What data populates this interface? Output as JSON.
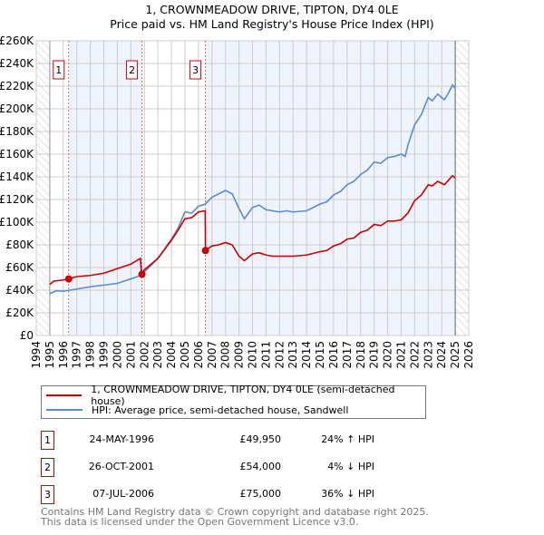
{
  "title": "1, CROWNMEADOW DRIVE, TIPTON, DY4 0LE",
  "subtitle": "Price paid vs. HM Land Registry's House Price Index (HPI)",
  "colors": {
    "property": "#cc0000",
    "hpi": "#5b8bd0",
    "shade": "#eef3fc"
  },
  "chart_data": {
    "type": "line",
    "title": "1, CROWNMEADOW DRIVE, TIPTON, DY4 0LE",
    "xlim": [
      1994,
      2026
    ],
    "ylim": [
      0,
      260000
    ],
    "x_ticks": [
      "1994",
      "1995",
      "1996",
      "1997",
      "1998",
      "1999",
      "2000",
      "2001",
      "2002",
      "2003",
      "2004",
      "2005",
      "2006",
      "2007",
      "2008",
      "2009",
      "2010",
      "2011",
      "2012",
      "2013",
      "2014",
      "2015",
      "2016",
      "2017",
      "2018",
      "2019",
      "2020",
      "2021",
      "2022",
      "2023",
      "2024",
      "2025",
      "2026"
    ],
    "y_ticks": [
      "£0",
      "£20K",
      "£40K",
      "£60K",
      "£80K",
      "£100K",
      "£120K",
      "£140K",
      "£160K",
      "£180K",
      "£200K",
      "£220K",
      "£240K",
      "£260K"
    ],
    "series": [
      {
        "name": "1, CROWNMEADOW DRIVE, TIPTON, DY4 0LE (semi-detached house)",
        "color": "#cc0000",
        "points": [
          [
            1995,
            45
          ],
          [
            1995.3,
            48
          ],
          [
            1996,
            49
          ],
          [
            1996.4,
            50
          ],
          [
            1997,
            52
          ],
          [
            1998,
            53
          ],
          [
            1999,
            55
          ],
          [
            2000,
            59
          ],
          [
            2001,
            63
          ],
          [
            2001.7,
            68
          ],
          [
            2001.8,
            54
          ],
          [
            2002,
            58
          ],
          [
            2003,
            68
          ],
          [
            2004,
            84
          ],
          [
            2004.5,
            93
          ],
          [
            2005,
            103
          ],
          [
            2005.5,
            104
          ],
          [
            2006,
            109
          ],
          [
            2006.5,
            110
          ],
          [
            2006.52,
            75
          ],
          [
            2007,
            79
          ],
          [
            2007.5,
            80
          ],
          [
            2008,
            82
          ],
          [
            2008.5,
            80
          ],
          [
            2009,
            70
          ],
          [
            2009.4,
            66
          ],
          [
            2010,
            72
          ],
          [
            2010.5,
            73
          ],
          [
            2011,
            71
          ],
          [
            2011.5,
            70
          ],
          [
            2012,
            70
          ],
          [
            2013,
            70
          ],
          [
            2014,
            71
          ],
          [
            2015,
            74
          ],
          [
            2015.5,
            75
          ],
          [
            2016,
            79
          ],
          [
            2016.5,
            81
          ],
          [
            2017,
            85
          ],
          [
            2017.5,
            86
          ],
          [
            2018,
            91
          ],
          [
            2018.5,
            93
          ],
          [
            2019,
            98
          ],
          [
            2019.5,
            97
          ],
          [
            2020,
            101
          ],
          [
            2020.5,
            101
          ],
          [
            2021,
            102
          ],
          [
            2021.5,
            108
          ],
          [
            2022,
            119
          ],
          [
            2022.5,
            124
          ],
          [
            2023,
            133
          ],
          [
            2023.3,
            132
          ],
          [
            2023.7,
            136
          ],
          [
            2024.2,
            133
          ],
          [
            2024.8,
            141
          ],
          [
            2025,
            139
          ]
        ]
      },
      {
        "name": "HPI: Average price, semi-detached house, Sandwell",
        "color": "#5b8bd0",
        "points": [
          [
            1995,
            37
          ],
          [
            1995.5,
            39.5
          ],
          [
            1996,
            39
          ],
          [
            1997,
            41
          ],
          [
            1998,
            43
          ],
          [
            1999,
            44.5
          ],
          [
            2000,
            46
          ],
          [
            2001,
            50
          ],
          [
            2001.5,
            52
          ],
          [
            2002,
            56
          ],
          [
            2003,
            68
          ],
          [
            2004,
            85
          ],
          [
            2004.5,
            95
          ],
          [
            2005,
            109
          ],
          [
            2005.5,
            108
          ],
          [
            2006,
            114
          ],
          [
            2006.5,
            116
          ],
          [
            2007,
            122
          ],
          [
            2007.5,
            125
          ],
          [
            2008,
            128
          ],
          [
            2008.5,
            125
          ],
          [
            2009,
            112
          ],
          [
            2009.4,
            103
          ],
          [
            2010,
            113
          ],
          [
            2010.5,
            115
          ],
          [
            2011,
            111
          ],
          [
            2011.5,
            110
          ],
          [
            2012,
            109
          ],
          [
            2012.5,
            110
          ],
          [
            2013,
            109
          ],
          [
            2014,
            110
          ],
          [
            2014.5,
            113
          ],
          [
            2015,
            116
          ],
          [
            2015.5,
            118
          ],
          [
            2016,
            124
          ],
          [
            2016.5,
            127
          ],
          [
            2017,
            133
          ],
          [
            2017.5,
            136
          ],
          [
            2018,
            142
          ],
          [
            2018.5,
            146
          ],
          [
            2019,
            153
          ],
          [
            2019.5,
            152
          ],
          [
            2020,
            157
          ],
          [
            2020.5,
            158
          ],
          [
            2021,
            160
          ],
          [
            2021.3,
            158
          ],
          [
            2021.5,
            168
          ],
          [
            2022,
            186
          ],
          [
            2022.5,
            195
          ],
          [
            2023,
            210
          ],
          [
            2023.3,
            207
          ],
          [
            2023.7,
            213
          ],
          [
            2024.2,
            208
          ],
          [
            2024.5,
            214
          ],
          [
            2024.8,
            221
          ],
          [
            2025,
            218
          ]
        ]
      }
    ],
    "y_unit": "thousands GBP",
    "sales": [
      {
        "label": "1",
        "x": 1996.4,
        "price": 49950
      },
      {
        "label": "2",
        "x": 2001.82,
        "price": 54000
      },
      {
        "label": "3",
        "x": 2006.52,
        "price": 75000
      }
    ],
    "legend_placement": "bottom"
  },
  "legend": {
    "property": "1, CROWNMEADOW DRIVE, TIPTON, DY4 0LE (semi-detached house)",
    "hpi": "HPI: Average price, semi-detached house, Sandwell"
  },
  "sales_table": [
    {
      "num": "1",
      "date": "24-MAY-1996",
      "price": "£49,950",
      "hpi": "24% ↑ HPI"
    },
    {
      "num": "2",
      "date": "26-OCT-2001",
      "price": "£54,000",
      "hpi": "4% ↓ HPI"
    },
    {
      "num": "3",
      "date": "07-JUL-2006",
      "price": "£75,000",
      "hpi": "36% ↓ HPI"
    }
  ],
  "footer": {
    "line1": "Contains HM Land Registry data © Crown copyright and database right 2025.",
    "line2": "This data is licensed under the Open Government Licence v3.0."
  }
}
